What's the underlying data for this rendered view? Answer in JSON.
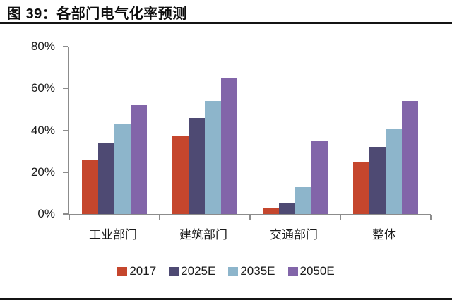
{
  "header": {
    "title": "图 39：各部门电气化率预测"
  },
  "chart_data": {
    "type": "bar",
    "title": "图 39：各部门电气化率预测",
    "categories": [
      "工业部门",
      "建筑部门",
      "交通部门",
      "整体"
    ],
    "series": [
      {
        "name": "2017",
        "color": "#c5462d",
        "values": [
          26,
          37,
          3,
          25
        ]
      },
      {
        "name": "2025E",
        "color": "#4e4a73",
        "values": [
          34,
          46,
          5,
          32
        ]
      },
      {
        "name": "2035E",
        "color": "#8db5cb",
        "values": [
          43,
          54,
          13,
          41
        ]
      },
      {
        "name": "2050E",
        "color": "#8265a9",
        "values": [
          52,
          65,
          35,
          54
        ]
      }
    ],
    "xlabel": "",
    "ylabel": "",
    "ylim": [
      0,
      80
    ],
    "yticks": [
      0,
      20,
      40,
      60,
      80
    ],
    "ytick_labels": [
      "0%",
      "20%",
      "40%",
      "60%",
      "80%"
    ],
    "grid": false,
    "legend_position": "bottom",
    "unit": "percent"
  },
  "colors": {
    "rule": "#141414",
    "axis": "#8c8c8c",
    "text": "#1a1a1a"
  }
}
